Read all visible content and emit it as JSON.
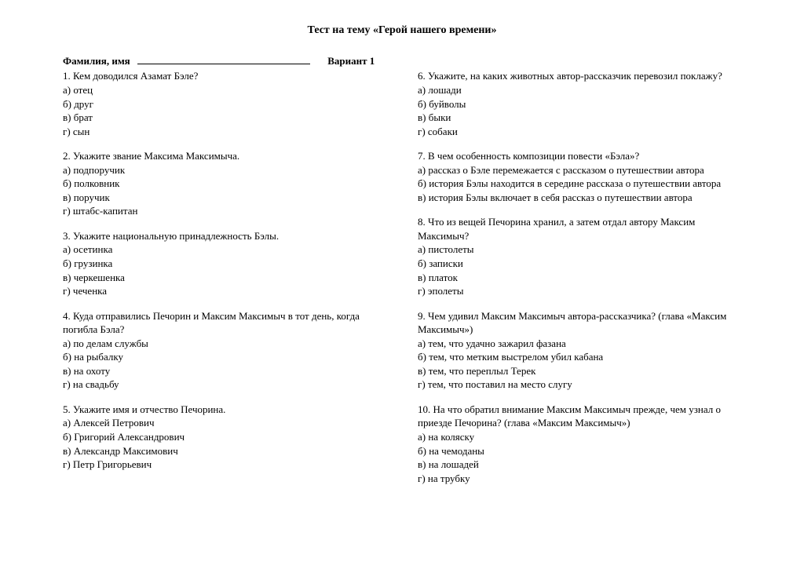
{
  "title": "Тест на тему «Герой нашего времени»",
  "header": {
    "name_label": "Фамилия, имя",
    "variant_label": "Вариант 1"
  },
  "left": [
    {
      "q": "1.  Кем доводился Азамат Бэле?",
      "opts": [
        "а) отец",
        "б) друг",
        "в) брат",
        "г) сын"
      ]
    },
    {
      "q": "2. Укажите  звание Максима Максимыча.",
      "opts": [
        "а) подпоручик",
        "б) полковник",
        "в) поручик",
        "г) штабс-капитан"
      ]
    },
    {
      "q": "3. Укажите национальную принадлежность  Бэлы.",
      "opts": [
        "а) осетинка",
        "б) грузинка",
        "в) черкешенка",
        "г) чеченка"
      ]
    },
    {
      "q": "4. Куда отправились Печорин и Максим Максимыч в тот день, когда погибла Бэла?",
      "opts": [
        "а)  по делам службы",
        "б) на рыбалку",
        "в) на охоту",
        "г) на свадьбу"
      ]
    },
    {
      "q": "5. Укажите имя и отчество Печорина.",
      "opts": [
        "а) Алексей Петрович",
        " б) Григорий  Александрович",
        "в) Александр Максимович",
        "г) Петр Григорьевич"
      ]
    }
  ],
  "right": [
    {
      "q": "6. Укажите, на каких животных автор-рассказчик перевозил поклажу?",
      "opts": [
        "а) лошади",
        "б) буйволы",
        " в) быки",
        "г) собаки"
      ]
    },
    {
      "q": "7.  В чем особенность композиции повести «Бэла»?",
      "opts": [
        "а)  рассказ о Бэле перемежается с рассказом о путешествии автора",
        "б) история Бэлы  находится в середине рассказа о путешествии автора",
        "в) история Бэлы включает в себя рассказ о путешествии автора"
      ]
    },
    {
      "q": "8. Что из вещей Печорина хранил, а затем отдал автору Максим Максимыч?",
      "opts": [
        "а) пистолеты",
        "б) записки",
        "в) платок",
        "г) эполеты"
      ]
    },
    {
      "q": "9.  Чем удивил Максим Максимыч автора-рассказчика? (глава «Максим Максимыч»)",
      "opts": [
        "а) тем, что удачно зажарил фазана",
        "б) тем, что метким выстрелом убил кабана",
        "в) тем, что переплыл Терек",
        "г) тем, что поставил на место слугу"
      ]
    },
    {
      "q": "10. На что  обратил внимание Максим Максимыч прежде, чем узнал о приезде Печорина?  (глава «Максим Максимыч»)",
      "opts": [
        "а)  на коляску",
        "б) на чемоданы",
        "в) на лошадей",
        "г) на трубку"
      ]
    }
  ]
}
